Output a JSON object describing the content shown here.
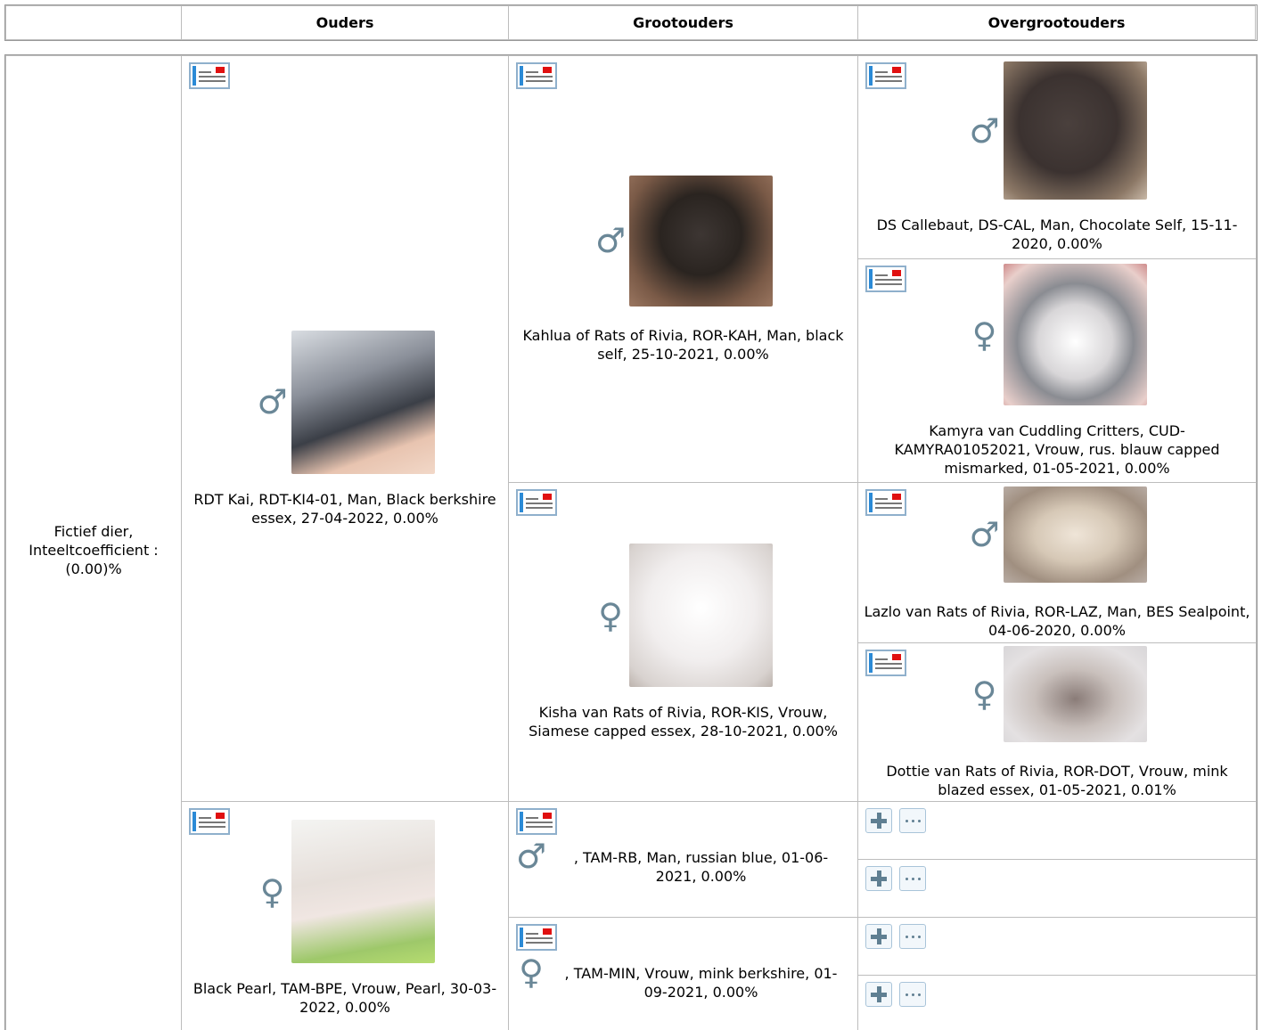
{
  "header": {
    "columns": [
      "Ouders",
      "Grootouders",
      "Overgrootouders"
    ]
  },
  "subject": "Fictief dier, Inteeltcoefficient : (0.00)%",
  "parents": [
    {
      "sex": "♂",
      "label": "RDT Kai, RDT-KI4-01, Man, Black berkshire essex, 27-04-2022, 0.00%"
    },
    {
      "sex": "♀",
      "label": "Black Pearl, TAM-BPE, Vrouw, Pearl, 30-03-2022, 0.00%"
    }
  ],
  "grandparents": [
    {
      "sex": "♂",
      "label": "Kahlua of Rats of Rivia, ROR-KAH, Man, black self, 25-10-2021, 0.00%"
    },
    {
      "sex": "♀",
      "label": "Kisha van Rats of Rivia, ROR-KIS, Vrouw, Siamese capped essex, 28-10-2021, 0.00%"
    },
    {
      "sex": "♂",
      "label": ", TAM-RB, Man, russian blue, 01-06-2021, 0.00%"
    },
    {
      "sex": "♀",
      "label": ", TAM-MIN, Vrouw, mink berkshire, 01-09-2021, 0.00%"
    }
  ],
  "great_grandparents": [
    {
      "sex": "♂",
      "label": "DS Callebaut, DS-CAL, Man, Chocolate Self, 15-11-2020, 0.00%"
    },
    {
      "sex": "♀",
      "label": "Kamyra van Cuddling Critters, CUD-KAMYRA01052021, Vrouw, rus. blauw capped mismarked, 01-05-2021, 0.00%"
    },
    {
      "sex": "♂",
      "label": "Lazlo van Rats of Rivia, ROR-LAZ, Man, BES Sealpoint, 04-06-2020, 0.00%"
    },
    {
      "sex": "♀",
      "label": "Dottie van Rats of Rivia, ROR-DOT, Vrouw, mink blazed essex, 01-05-2021, 0.01%"
    }
  ]
}
